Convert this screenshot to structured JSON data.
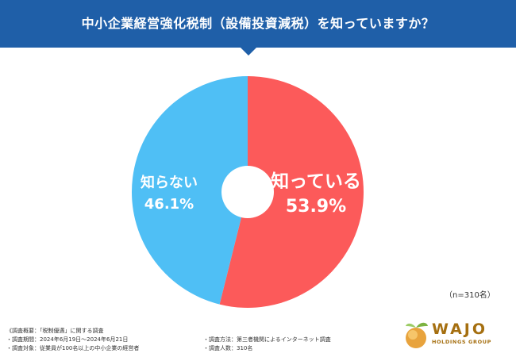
{
  "header": {
    "title": "中小企業経営強化税制（設備投資減税）を知っていますか？"
  },
  "chart_data": {
    "type": "pie",
    "title": "中小企業経営強化税制（設備投資減税）を知っていますか？",
    "slices": [
      {
        "label": "知っている",
        "value": 53.9,
        "value_label": "53.9%",
        "color": "#fc5a5a"
      },
      {
        "label": "知らない",
        "value": 46.1,
        "value_label": "46.1%",
        "color": "#4fbff5"
      }
    ],
    "donut_hole": true,
    "legend": "none"
  },
  "sample_size": "（n=310名）",
  "survey": {
    "overview": "《調査概要：「税制優遇」に関する調査",
    "period": "・調査期間：2024年6月19日～2024年6月21日",
    "target": "・調査対象：従業員が100名以上の中小企業の経営者",
    "method": "・調査方法：第三者機関によるインターネット調査",
    "count": "・調査人数：310名"
  },
  "logo": {
    "name": "WAJO",
    "subtitle": "HOLDINGS GROUP",
    "colors": {
      "gold": "#a56f10",
      "orange": "#e8a33d",
      "green": "#7cb342"
    }
  }
}
